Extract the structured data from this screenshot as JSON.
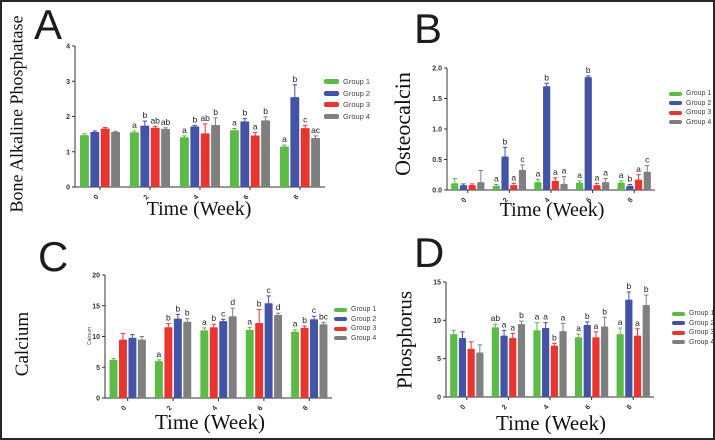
{
  "groups": [
    {
      "name": "Group 1",
      "color": "#5cba47"
    },
    {
      "name": "Group 2",
      "color": "#4353a5"
    },
    {
      "name": "Group 3",
      "color": "#e8352f"
    },
    {
      "name": "Group 4",
      "color": "#7f7f7f"
    }
  ],
  "chart_data": [
    {
      "id": "A",
      "type": "bar",
      "ylabel": "Bone Alkaline Phosphatase",
      "xlabel": "Time (Week)",
      "inner_ylabel": "",
      "categories": [
        "0",
        "2",
        "4",
        "6",
        "8"
      ],
      "ylim": [
        0,
        4
      ],
      "ytick_values": [
        0,
        1,
        2,
        3,
        4
      ],
      "ytick_labels": [
        "0",
        "1",
        "2",
        "3",
        "4"
      ],
      "legend_position": "right",
      "grid": false,
      "bar_order": [
        "Group 1",
        "Group 2",
        "Group 3",
        "Group 4"
      ],
      "series": [
        {
          "name": "Group 1",
          "color": "#5cba47",
          "values": [
            1.47,
            1.55,
            1.41,
            1.61,
            1.15
          ],
          "errors": [
            0.04,
            0.04,
            0.04,
            0.05,
            0.04
          ],
          "letters": [
            "",
            "a",
            "a",
            "a",
            "a"
          ]
        },
        {
          "name": "Group 2",
          "color": "#4353a5",
          "values": [
            1.56,
            1.74,
            1.72,
            1.86,
            2.55
          ],
          "errors": [
            0.03,
            0.13,
            0.03,
            0.08,
            0.35
          ],
          "letters": [
            "",
            "b",
            "b",
            "b",
            "b"
          ]
        },
        {
          "name": "Group 3",
          "color": "#e8352f",
          "values": [
            1.66,
            1.68,
            1.52,
            1.46,
            1.67
          ],
          "errors": [
            0.03,
            0.04,
            0.27,
            0.09,
            0.08
          ],
          "letters": [
            "",
            "ab",
            "ab",
            "a",
            "c"
          ]
        },
        {
          "name": "Group 4",
          "color": "#7f7f7f",
          "values": [
            1.56,
            1.65,
            1.76,
            1.89,
            1.39
          ],
          "errors": [
            0.02,
            0.03,
            0.2,
            0.1,
            0.06
          ],
          "letters": [
            "",
            "ab",
            "b",
            "b",
            "ac"
          ]
        }
      ]
    },
    {
      "id": "B",
      "type": "bar",
      "ylabel": "Osteocalcin",
      "xlabel": "Time (Week)",
      "inner_ylabel": "",
      "categories": [
        "0",
        "2",
        "4",
        "6",
        "8"
      ],
      "ylim": [
        0,
        2.0
      ],
      "ytick_values": [
        0,
        0.5,
        1.0,
        1.5,
        2.0
      ],
      "ytick_labels": [
        "0.0",
        "0.5",
        "1.0",
        "1.5",
        "2.0"
      ],
      "legend_position": "right",
      "grid": false,
      "bar_order": [
        "Group 1",
        "Group 2",
        "Group 3",
        "Group 4"
      ],
      "series": [
        {
          "name": "Group 1",
          "color": "#5cba47",
          "values": [
            0.11,
            0.07,
            0.13,
            0.12,
            0.12
          ],
          "errors": [
            0.08,
            0.02,
            0.04,
            0.03,
            0.03
          ],
          "letters": [
            "",
            "a",
            "a",
            "a",
            "a"
          ]
        },
        {
          "name": "Group 2",
          "color": "#4353a5",
          "values": [
            0.08,
            0.55,
            1.7,
            1.85,
            0.07
          ],
          "errors": [
            0.02,
            0.15,
            0.05,
            0.02,
            0.02
          ],
          "letters": [
            "",
            "b",
            "b",
            "b",
            "b"
          ]
        },
        {
          "name": "Group 3",
          "color": "#e8352f",
          "values": [
            0.08,
            0.08,
            0.15,
            0.08,
            0.17
          ],
          "errors": [
            0.02,
            0.03,
            0.05,
            0.03,
            0.08
          ],
          "letters": [
            "",
            "a",
            "a",
            "a",
            "a"
          ]
        },
        {
          "name": "Group 4",
          "color": "#7f7f7f",
          "values": [
            0.13,
            0.33,
            0.1,
            0.13,
            0.3
          ],
          "errors": [
            0.19,
            0.08,
            0.12,
            0.06,
            0.1
          ],
          "letters": [
            "",
            "c",
            "a",
            "a",
            "c"
          ]
        }
      ]
    },
    {
      "id": "C",
      "type": "bar",
      "ylabel": "Calcium",
      "xlabel": "Time (Week)",
      "inner_ylabel": "Calcium",
      "categories": [
        "0",
        "2",
        "4",
        "6",
        "8"
      ],
      "ylim": [
        0,
        20
      ],
      "ytick_values": [
        0,
        5,
        10,
        15,
        20
      ],
      "ytick_labels": [
        "0",
        "5",
        "10",
        "15",
        "20"
      ],
      "legend_position": "right",
      "grid": false,
      "bar_order": [
        "Group 1",
        "Group 3",
        "Group 2",
        "Group 4"
      ],
      "series": [
        {
          "name": "Group 1",
          "color": "#5cba47",
          "values": [
            6.2,
            6.0,
            11.0,
            11.1,
            10.8
          ],
          "errors": [
            0.2,
            0.2,
            0.4,
            0.4,
            0.3
          ],
          "letters": [
            "",
            "a",
            "a",
            "a",
            "a"
          ]
        },
        {
          "name": "Group 2",
          "color": "#4353a5",
          "values": [
            9.8,
            12.9,
            12.5,
            15.4,
            12.8
          ],
          "errors": [
            0.5,
            0.7,
            0.3,
            1.2,
            0.5
          ],
          "letters": [
            "",
            "b",
            "c",
            "c",
            "c"
          ]
        },
        {
          "name": "Group 3",
          "color": "#e8352f",
          "values": [
            9.5,
            11.5,
            11.5,
            12.2,
            11.4
          ],
          "errors": [
            1.0,
            0.6,
            0.5,
            2.2,
            0.3
          ],
          "letters": [
            "",
            "b",
            "b",
            "b",
            "b"
          ]
        },
        {
          "name": "Group 4",
          "color": "#7f7f7f",
          "values": [
            9.5,
            12.4,
            13.3,
            13.5,
            12.0
          ],
          "errors": [
            0.5,
            0.5,
            1.3,
            0.3,
            0.3
          ],
          "letters": [
            "",
            "b",
            "d",
            "d",
            "bc"
          ]
        }
      ]
    },
    {
      "id": "D",
      "type": "bar",
      "ylabel": "Phosphorus",
      "xlabel": "Time (Week)",
      "inner_ylabel": "",
      "categories": [
        "0",
        "2",
        "4",
        "6",
        "8"
      ],
      "ylim": [
        0,
        15
      ],
      "ytick_values": [
        0,
        5,
        10,
        15
      ],
      "ytick_labels": [
        "0",
        "5",
        "10",
        "15"
      ],
      "legend_position": "right",
      "grid": false,
      "bar_order": [
        "Group 1",
        "Group 2",
        "Group 3",
        "Group 4"
      ],
      "series": [
        {
          "name": "Group 1",
          "color": "#5cba47",
          "values": [
            8.2,
            9.1,
            8.7,
            7.8,
            8.2
          ],
          "errors": [
            0.5,
            0.4,
            1.0,
            0.4,
            0.8
          ],
          "letters": [
            "",
            "ab",
            "a",
            "a",
            "a"
          ]
        },
        {
          "name": "Group 2",
          "color": "#4353a5",
          "values": [
            7.7,
            8.0,
            9.0,
            9.4,
            12.7
          ],
          "errors": [
            0.8,
            0.7,
            0.7,
            0.4,
            1.0
          ],
          "letters": [
            "",
            "a",
            "a",
            "b",
            "b"
          ]
        },
        {
          "name": "Group 3",
          "color": "#e8352f",
          "values": [
            6.3,
            7.7,
            6.7,
            7.8,
            8.0
          ],
          "errors": [
            0.9,
            0.6,
            0.3,
            0.7,
            0.9
          ],
          "letters": [
            "",
            "a",
            "b",
            "a",
            "a"
          ]
        },
        {
          "name": "Group 4",
          "color": "#7f7f7f",
          "values": [
            5.8,
            9.5,
            8.6,
            9.2,
            12.0
          ],
          "errors": [
            1.0,
            0.4,
            1.0,
            1.2,
            1.3
          ],
          "letters": [
            "",
            "b",
            "a",
            "b",
            "b"
          ]
        }
      ]
    }
  ]
}
